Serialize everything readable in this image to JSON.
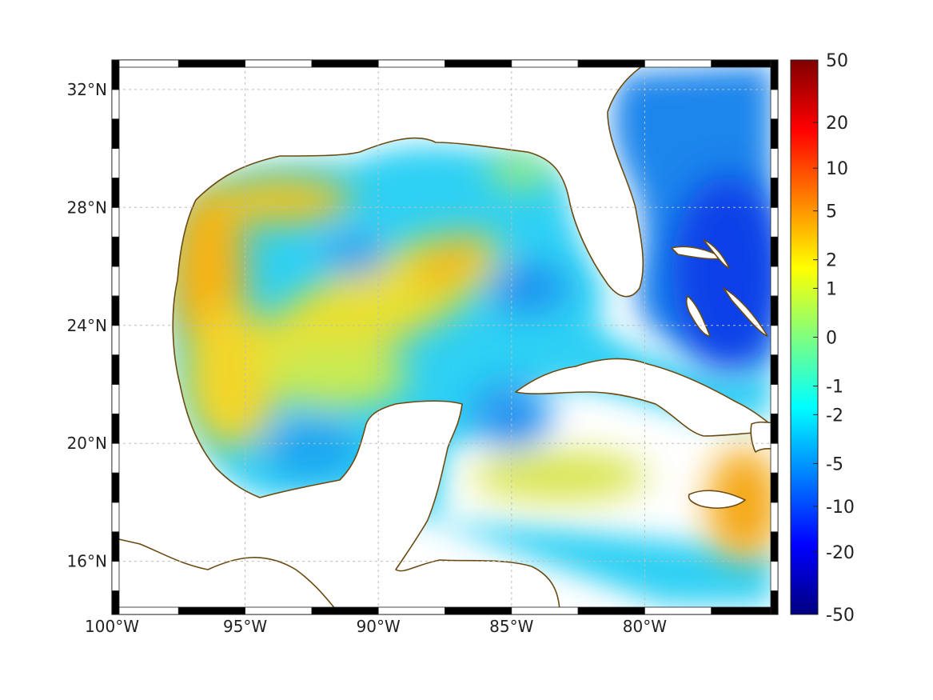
{
  "map": {
    "projection": "equirectangular",
    "lon_range_deg": [
      -100,
      -75
    ],
    "lat_range_deg": [
      14.2,
      33
    ],
    "longitude_ticks": [
      {
        "value": -100,
        "label": "100°W"
      },
      {
        "value": -95,
        "label": "95°W"
      },
      {
        "value": -90,
        "label": "90°W"
      },
      {
        "value": -85,
        "label": "85°W"
      },
      {
        "value": -80,
        "label": "80°W"
      }
    ],
    "latitude_ticks": [
      {
        "value": 32,
        "label": "32°N"
      },
      {
        "value": 28,
        "label": "28°N"
      },
      {
        "value": 24,
        "label": "24°N"
      },
      {
        "value": 20,
        "label": "20°N"
      },
      {
        "value": 16,
        "label": "16°N"
      }
    ],
    "grid": true,
    "frame_style": "alternating black/white border",
    "coastline_color": "#6b4a12",
    "land_color": "#ffffff",
    "field_region": "Gulf of Mexico, western Caribbean Sea and Atlantic east of Florida",
    "field_description": "Highest values (orange, ~3 to 5) on the western Gulf shelf off Texas/Mexico, in a band across the central Gulf and south of Hispaniola; lowest values (blue, ~-5 to -10) in the Atlantic east of Florida and around the Bahamas; mostly cyan to yellow elsewhere."
  },
  "colorbar": {
    "colormap": "jet",
    "scale": "nonlinear (symmetric log-like)",
    "ticks": [
      {
        "value": 50,
        "label": "50"
      },
      {
        "value": 20,
        "label": "20"
      },
      {
        "value": 10,
        "label": "10"
      },
      {
        "value": 5,
        "label": "5"
      },
      {
        "value": 2,
        "label": "2"
      },
      {
        "value": 1,
        "label": "1"
      },
      {
        "value": 0,
        "label": "0"
      },
      {
        "value": -1,
        "label": "-1"
      },
      {
        "value": -2,
        "label": "-2"
      },
      {
        "value": -5,
        "label": "-5"
      },
      {
        "value": -10,
        "label": "-10"
      },
      {
        "value": -20,
        "label": "-20"
      },
      {
        "value": -50,
        "label": "-50"
      }
    ],
    "placement": "right"
  }
}
